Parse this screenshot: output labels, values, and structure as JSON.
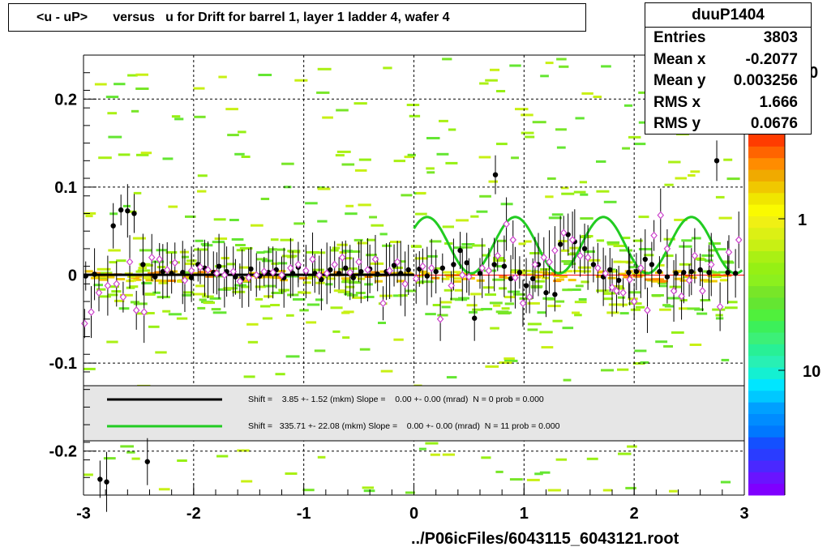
{
  "title": "<u - uP>       versus   u for Drift for barrel 1, layer 1 ladder 4, wafer 4",
  "footer": "../P06icFiles/6043115_6043121.root",
  "stats": {
    "name": "duuP1404",
    "rows": [
      {
        "label": "Entries",
        "value": "3803"
      },
      {
        "label": "Mean x",
        "value": "-0.2077"
      },
      {
        "label": "Mean y",
        "value": "0.003256"
      },
      {
        "label": "RMS x",
        "value": "1.666"
      },
      {
        "label": "RMS y",
        "value": "0.0676"
      }
    ]
  },
  "legend": [
    {
      "color": "#000000",
      "text": "Shift =    3.85 +- 1.52 (mkm) Slope =    0.00 +- 0.00 (mrad)  N = 0 prob = 0.000"
    },
    {
      "color": "#22cc22",
      "text": "Shift =   335.71 +- 22.08 (mkm) Slope =    0.00 +- 0.00 (mrad)  N = 11 prob = 0.000"
    }
  ],
  "chart_data": {
    "type": "scatter",
    "title": "<u - uP>       versus   u for Drift for barrel 1, layer 1 ladder 4, wafer 4",
    "xlabel": "",
    "ylabel": "",
    "xlim": [
      -3,
      3
    ],
    "ylim": [
      -0.25,
      0.25
    ],
    "x_ticks": [
      "-3",
      "-2",
      "-1",
      "0",
      "1",
      "2",
      "3"
    ],
    "y_ticks": [
      "-0.2",
      "-0.1",
      "0",
      "0.1",
      "0.2"
    ],
    "grid": true,
    "z_ticks": [
      "1",
      "10"
    ],
    "z_tick_display": [
      "1",
      "10"
    ],
    "series": [
      {
        "marker": "filled-circle",
        "color": "#000000",
        "points": [
          [
            -2.98,
            -0.001
          ],
          [
            -2.9,
            0.001
          ],
          [
            -2.85,
            -0.232
          ],
          [
            -2.79,
            -0.235
          ],
          [
            -2.73,
            0.056
          ],
          [
            -2.66,
            0.074
          ],
          [
            -2.6,
            0.073
          ],
          [
            -2.54,
            0.07
          ],
          [
            -2.46,
            0.012
          ],
          [
            -2.42,
            -0.212
          ],
          [
            -2.35,
            -0.002
          ],
          [
            -2.28,
            0.004
          ],
          [
            -2.2,
            0.002
          ],
          [
            -2.1,
            0.003
          ],
          [
            -2.02,
            -0.003
          ],
          [
            -1.96,
            0.012
          ],
          [
            -1.9,
            0.008
          ],
          [
            -1.82,
            0.003
          ],
          [
            -1.77,
            0.01
          ],
          [
            -1.7,
            0.004
          ],
          [
            -1.62,
            -0.002
          ],
          [
            -1.56,
            -0.004
          ],
          [
            -1.48,
            0.007
          ],
          [
            -1.4,
            -0.001
          ],
          [
            -1.32,
            0.003
          ],
          [
            -1.25,
            0.006
          ],
          [
            -1.18,
            -0.003
          ],
          [
            -1.1,
            0.002
          ],
          [
            -1.05,
            0.009
          ],
          [
            -0.98,
            0.004
          ],
          [
            -0.9,
            0.002
          ],
          [
            -0.84,
            -0.005
          ],
          [
            -0.76,
            0.006
          ],
          [
            -0.68,
            0.002
          ],
          [
            -0.62,
            0.008
          ],
          [
            -0.55,
            -0.003
          ],
          [
            -0.48,
            0.004
          ],
          [
            -0.4,
            0.007
          ],
          [
            -0.33,
            0.001
          ],
          [
            -0.25,
            0.004
          ],
          [
            -0.18,
            0.011
          ],
          [
            -0.12,
            0.002
          ],
          [
            -0.05,
            0.006
          ],
          [
            0.05,
            0.007
          ],
          [
            0.12,
            -0.001
          ],
          [
            0.2,
            0.004
          ],
          [
            0.26,
            0.008
          ],
          [
            0.36,
            0.012
          ],
          [
            0.42,
            0.028
          ],
          [
            0.48,
            0.014
          ],
          [
            0.55,
            -0.049
          ],
          [
            0.6,
            0.002
          ],
          [
            0.73,
            0.012
          ],
          [
            0.74,
            0.114
          ],
          [
            0.82,
            0.01
          ],
          [
            0.88,
            -0.004
          ],
          [
            0.96,
            0.003
          ],
          [
            1.02,
            -0.012
          ],
          [
            1.08,
            -0.004
          ],
          [
            1.13,
            0.012
          ],
          [
            1.2,
            -0.02
          ],
          [
            1.28,
            -0.022
          ],
          [
            1.33,
            0.035
          ],
          [
            1.4,
            0.046
          ],
          [
            1.46,
            0.038
          ],
          [
            1.55,
            0.03
          ],
          [
            1.63,
            0.012
          ],
          [
            1.72,
            -0.002
          ],
          [
            1.78,
            0.006
          ],
          [
            1.86,
            -0.006
          ],
          [
            1.95,
            0.003
          ],
          [
            2.02,
            0.004
          ],
          [
            2.1,
            0.018
          ],
          [
            2.16,
            0.012
          ],
          [
            2.23,
            0.004
          ],
          [
            2.3,
            -0.002
          ],
          [
            2.38,
            0.002
          ],
          [
            2.45,
            0.003
          ],
          [
            2.52,
            0.004
          ],
          [
            2.6,
            0.006
          ],
          [
            2.68,
            0.003
          ],
          [
            2.75,
            0.13
          ],
          [
            2.85,
            0.003
          ],
          [
            2.92,
            0.002
          ]
        ]
      },
      {
        "marker": "open-diamond",
        "color": "#cc44cc",
        "points": [
          [
            -2.99,
            -0.055
          ],
          [
            -2.93,
            -0.042
          ],
          [
            -2.86,
            -0.02
          ],
          [
            -2.78,
            -0.012
          ],
          [
            -2.7,
            -0.01
          ],
          [
            -2.64,
            -0.025
          ],
          [
            -2.58,
            0.015
          ],
          [
            -2.52,
            -0.04
          ],
          [
            -2.45,
            -0.042
          ],
          [
            -2.38,
            0.02
          ],
          [
            -2.31,
            0.018
          ],
          [
            -2.24,
            0.006
          ],
          [
            -2.17,
            0.014
          ],
          [
            -2.08,
            -0.006
          ],
          [
            -2.02,
            0.005
          ],
          [
            -1.94,
            0.009
          ],
          [
            -1.87,
            0.006
          ],
          [
            -1.79,
            0.002
          ],
          [
            -1.72,
            0.0
          ],
          [
            -1.64,
            0.004
          ],
          [
            -1.58,
            -0.007
          ],
          [
            -1.5,
            -0.003
          ],
          [
            -1.43,
            0.0
          ],
          [
            -1.36,
            0.004
          ],
          [
            -1.28,
            0.003
          ],
          [
            -1.2,
            0.0
          ],
          [
            -1.12,
            0.008
          ],
          [
            -1.05,
            0.012
          ],
          [
            -0.98,
            0.005
          ],
          [
            -0.92,
            0.018
          ],
          [
            -0.86,
            0.0
          ],
          [
            -0.79,
            0.002
          ],
          [
            -0.72,
            0.012
          ],
          [
            -0.65,
            0.02
          ],
          [
            -0.58,
            0.003
          ],
          [
            -0.5,
            0.015
          ],
          [
            -0.42,
            0.006
          ],
          [
            -0.35,
            0.018
          ],
          [
            -0.28,
            -0.032
          ],
          [
            -0.22,
            0.005
          ],
          [
            -0.15,
            0.015
          ],
          [
            -0.08,
            -0.01
          ],
          [
            0.02,
            -0.004
          ],
          [
            0.08,
            0.01
          ],
          [
            0.16,
            0.008
          ],
          [
            0.24,
            -0.05
          ],
          [
            0.34,
            -0.012
          ],
          [
            0.44,
            0.0
          ],
          [
            0.5,
            -0.002
          ],
          [
            0.62,
            0.008
          ],
          [
            0.68,
            0.005
          ],
          [
            0.76,
            0.022
          ],
          [
            0.84,
            0.058
          ],
          [
            0.9,
            0.04
          ],
          [
            0.92,
            -0.003
          ],
          [
            0.99,
            -0.032
          ],
          [
            1.05,
            -0.025
          ],
          [
            1.1,
            0.012
          ],
          [
            1.18,
            0.02
          ],
          [
            1.23,
            0.015
          ],
          [
            1.28,
            0.028
          ],
          [
            1.36,
            0.048
          ],
          [
            1.44,
            0.04
          ],
          [
            1.51,
            0.022
          ],
          [
            1.58,
            0.02
          ],
          [
            1.67,
            0.008
          ],
          [
            1.74,
            0.002
          ],
          [
            1.8,
            -0.014
          ],
          [
            1.84,
            -0.018
          ],
          [
            1.9,
            -0.02
          ],
          [
            1.96,
            -0.005
          ],
          [
            2.0,
            -0.03
          ],
          [
            2.06,
            0.008
          ],
          [
            2.12,
            -0.04
          ],
          [
            2.18,
            0.045
          ],
          [
            2.24,
            0.068
          ],
          [
            2.3,
            0.03
          ],
          [
            2.36,
            -0.018
          ],
          [
            2.43,
            -0.024
          ],
          [
            2.5,
            -0.006
          ],
          [
            2.55,
            0.022
          ],
          [
            2.62,
            -0.018
          ],
          [
            2.7,
            0.012
          ],
          [
            2.78,
            -0.036
          ],
          [
            2.86,
            0.026
          ],
          [
            2.95,
            0.04
          ]
        ]
      }
    ],
    "fits": [
      {
        "color": "#000000",
        "shift_mkm": 3.85,
        "shift_err_mkm": 1.52,
        "slope_mrad": 0.0,
        "slope_err_mrad": 0.0,
        "N": 0,
        "prob": 0.0
      },
      {
        "color": "#22cc22",
        "shift_mkm": 335.71,
        "shift_err_mkm": 22.08,
        "slope_mrad": 0.0,
        "slope_err_mrad": 0.0,
        "N": 11,
        "prob": 0.0
      }
    ],
    "palette": [
      "#7f00ff",
      "#6a14ff",
      "#4a28ff",
      "#2a3cff",
      "#1450ff",
      "#0078ff",
      "#008cff",
      "#00a0ff",
      "#00c8ff",
      "#00e6ff",
      "#14f0d2",
      "#28f0b4",
      "#28f096",
      "#3cf078",
      "#3cf05a",
      "#50f03c",
      "#64e632",
      "#78e628",
      "#8cf01e",
      "#96f014",
      "#aaf014",
      "#c8f014",
      "#dcf014",
      "#f0f014",
      "#fafa00",
      "#f0e600",
      "#f0c800",
      "#f0aa00",
      "#ff8c00",
      "#ff6400",
      "#ff3c00"
    ]
  },
  "colors": {
    "axis": "#000000",
    "grid": "#000000",
    "zero_line": "#ff0000"
  }
}
